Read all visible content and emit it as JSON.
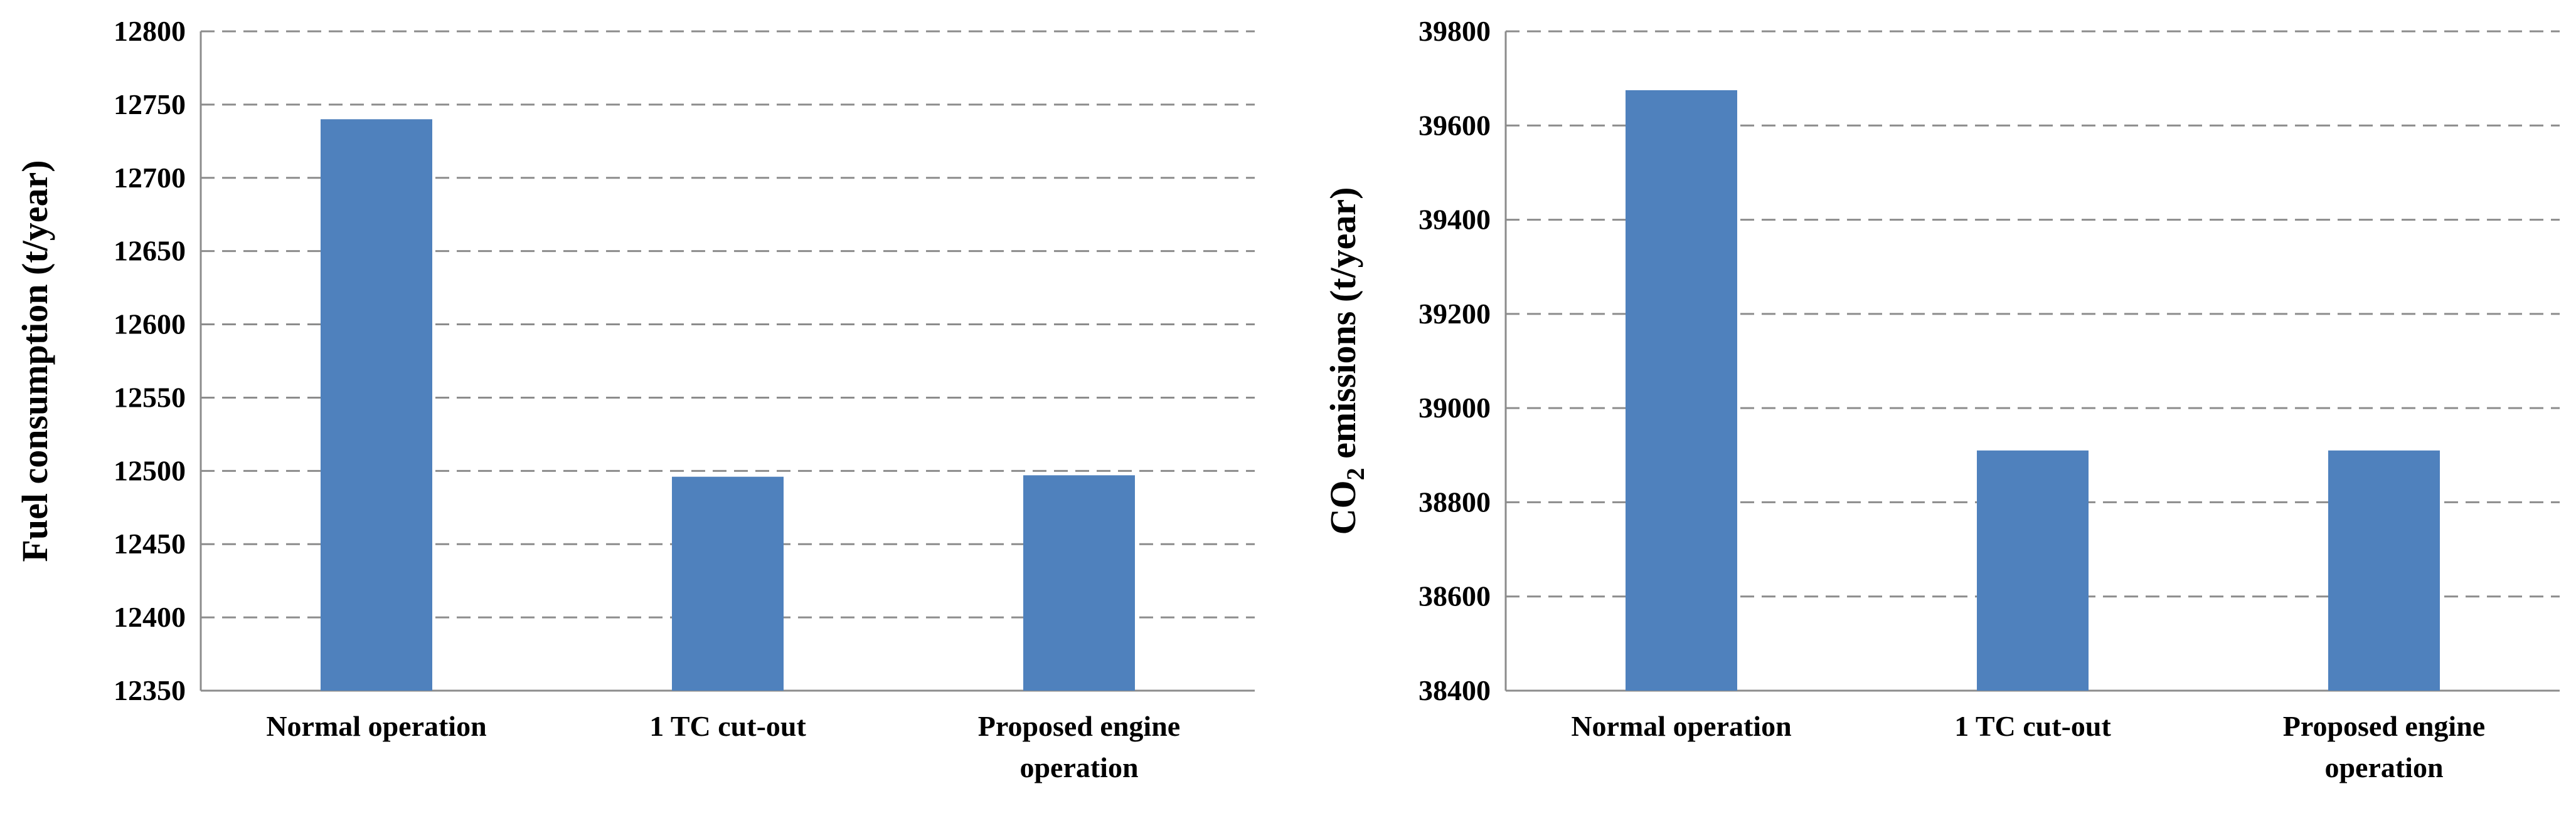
{
  "chart_data": [
    {
      "type": "bar",
      "ylabel": "Fuel consumption (t/year)",
      "categories": [
        [
          "Normal operation"
        ],
        [
          "1 TC cut-out"
        ],
        [
          "Proposed engine",
          "operation"
        ]
      ],
      "values": [
        12740,
        12496,
        12497
      ],
      "ylim": [
        12350,
        12800
      ],
      "yticks": [
        12350,
        12400,
        12450,
        12500,
        12550,
        12600,
        12650,
        12700,
        12750,
        12800
      ],
      "grid": "dashed horizontal",
      "bar_color": "#4F81BD",
      "legend": "none"
    },
    {
      "type": "bar",
      "ylabel": "CO2 emissions (t/year)",
      "ylabel_parts": {
        "pre": "CO",
        "sub": "2",
        "post": " emissions (t/year)"
      },
      "categories": [
        [
          "Normal operation"
        ],
        [
          "1 TC cut-out"
        ],
        [
          "Proposed engine",
          "operation"
        ]
      ],
      "values": [
        39675,
        38910,
        38910
      ],
      "ylim": [
        38400,
        39800
      ],
      "yticks": [
        38400,
        38600,
        38800,
        39000,
        39200,
        39400,
        39600,
        39800
      ],
      "grid": "dashed horizontal",
      "bar_color": "#4F81BD",
      "legend": "none"
    }
  ]
}
